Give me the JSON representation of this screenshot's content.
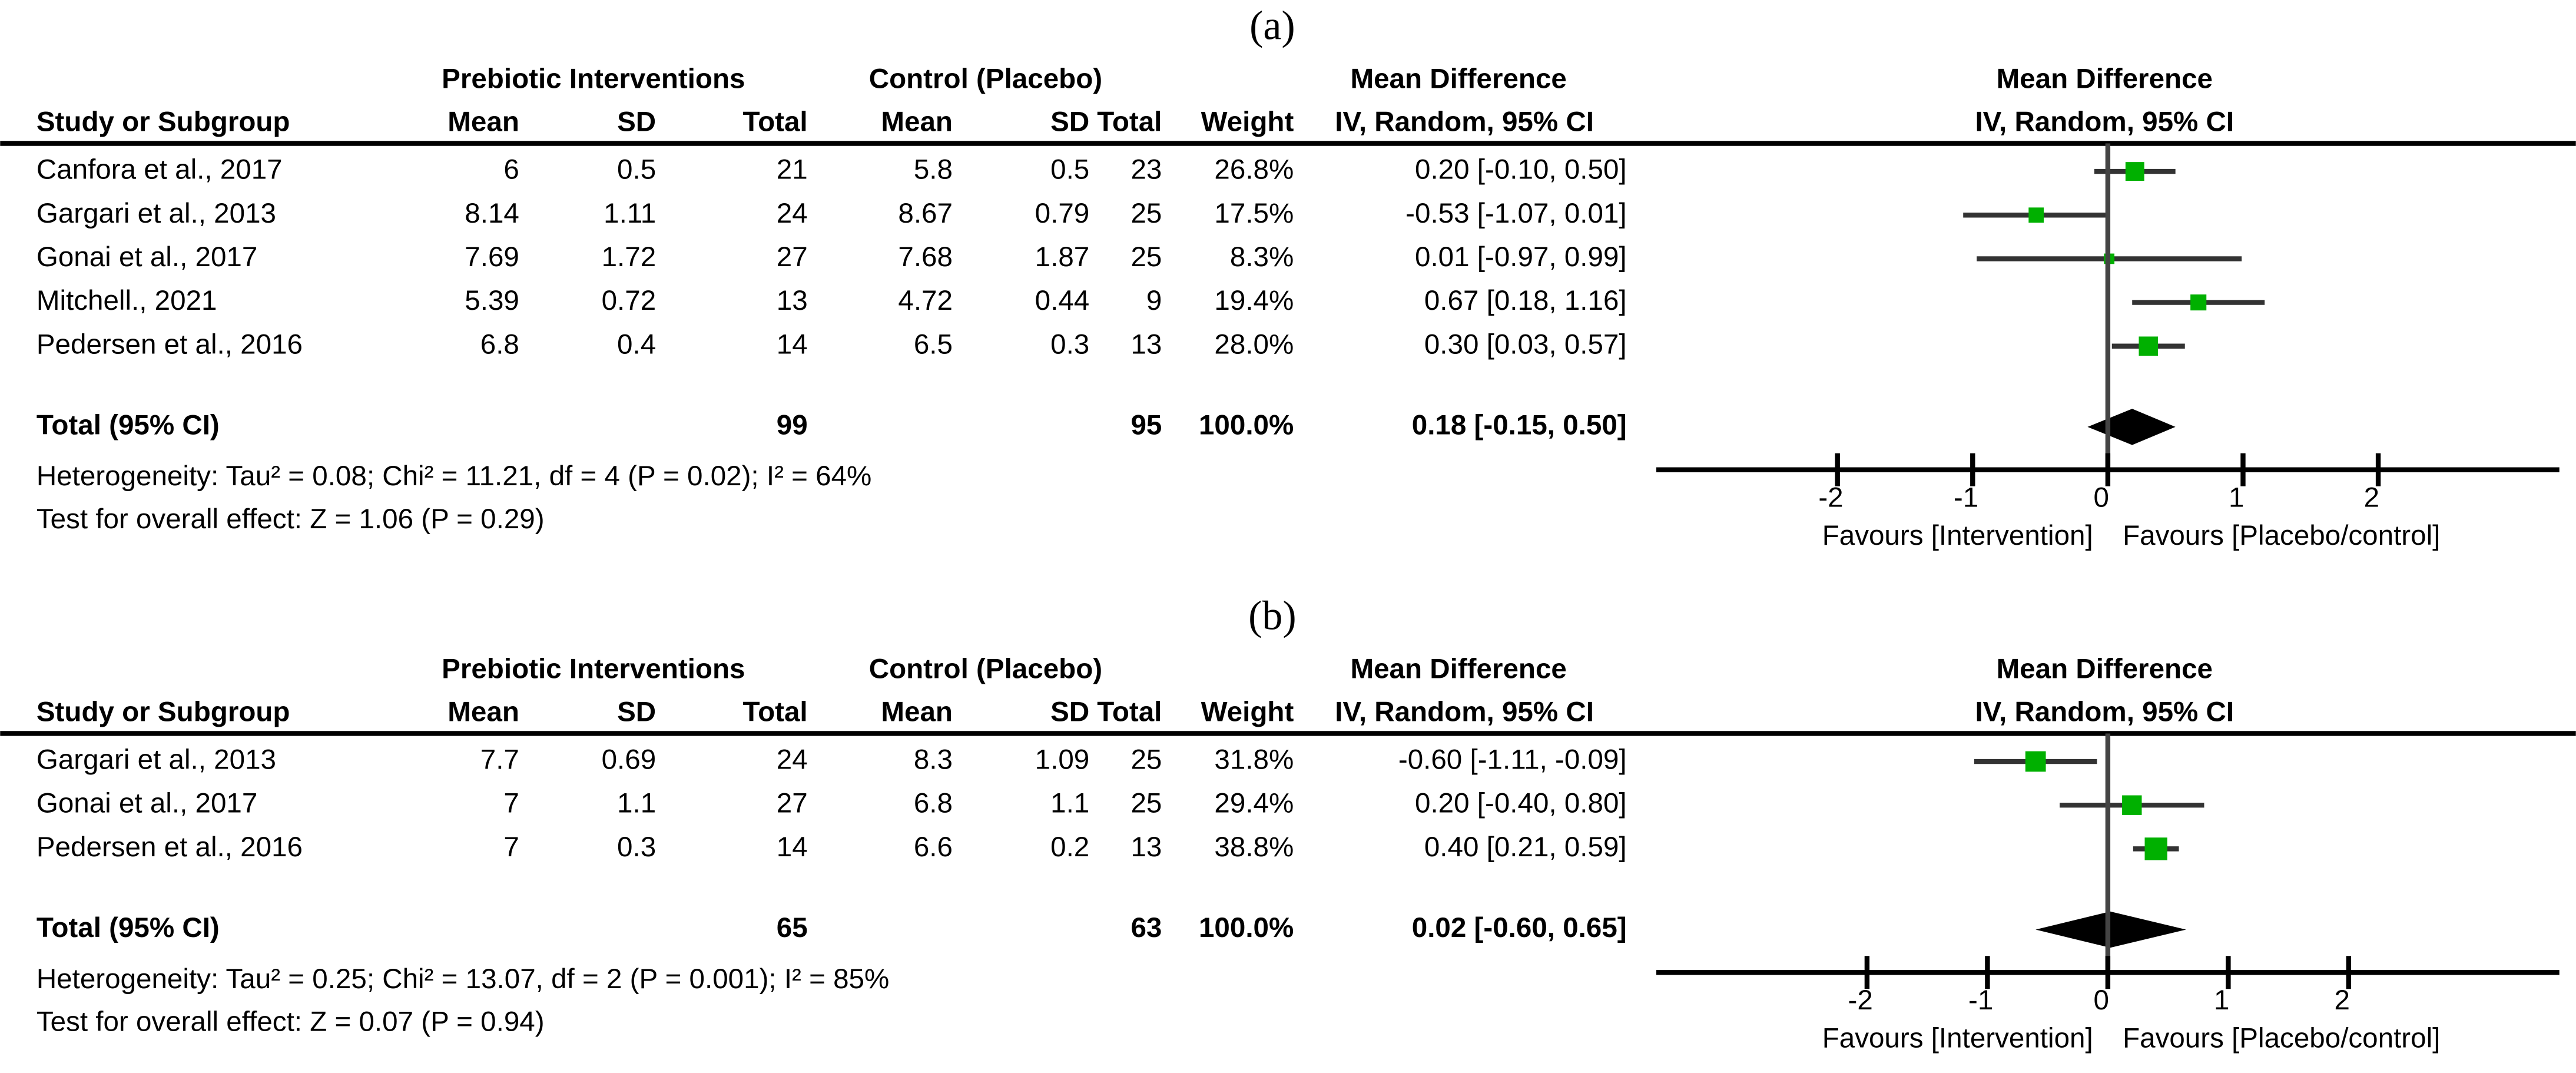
{
  "chart_data": [
    {
      "type": "forest",
      "label": "(a)",
      "group_labels": [
        "Prebiotic Interventions",
        "Control (Placebo)",
        "Mean Difference",
        "Mean Difference"
      ],
      "columns": [
        "Study or Subgroup",
        "Mean",
        "SD",
        "Total",
        "Mean",
        "SD",
        "Total",
        "Weight",
        "IV, Random, 95% CI",
        "IV, Random, 95% CI"
      ],
      "studies": [
        {
          "name": "Canfora et al., 2017",
          "intervention": [
            6,
            0.5,
            21
          ],
          "control": [
            5.8,
            0.5,
            23
          ],
          "weight": 26.8,
          "weight_label": "26.8%",
          "md": 0.2,
          "ci": [
            -0.1,
            0.5
          ],
          "effect_label": "0.20 [-0.10, 0.50]"
        },
        {
          "name": "Gargari et al., 2013",
          "intervention": [
            8.14,
            1.11,
            24
          ],
          "control": [
            8.67,
            0.79,
            25
          ],
          "weight": 17.5,
          "weight_label": "17.5%",
          "md": -0.53,
          "ci": [
            -1.07,
            0.01
          ],
          "effect_label": "-0.53 [-1.07, 0.01]"
        },
        {
          "name": "Gonai et al., 2017",
          "intervention": [
            7.69,
            1.72,
            27
          ],
          "control": [
            7.68,
            1.87,
            25
          ],
          "weight": 8.3,
          "weight_label": "8.3%",
          "md": 0.01,
          "ci": [
            -0.97,
            0.99
          ],
          "effect_label": "0.01 [-0.97, 0.99]"
        },
        {
          "name": "Mitchell., 2021",
          "intervention": [
            5.39,
            0.72,
            13
          ],
          "control": [
            4.72,
            0.44,
            9
          ],
          "weight": 19.4,
          "weight_label": "19.4%",
          "md": 0.67,
          "ci": [
            0.18,
            1.16
          ],
          "effect_label": "0.67 [0.18, 1.16]"
        },
        {
          "name": "Pedersen et al., 2016",
          "intervention": [
            6.8,
            0.4,
            14
          ],
          "control": [
            6.5,
            0.3,
            13
          ],
          "weight": 28.0,
          "weight_label": "28.0%",
          "md": 0.3,
          "ci": [
            0.03,
            0.57
          ],
          "effect_label": "0.30 [0.03, 0.57]"
        }
      ],
      "total": {
        "name": "Total (95% CI)",
        "intervention_total": 99,
        "control_total": 95,
        "weight": 100,
        "weight_label": "100.0%",
        "md": 0.18,
        "ci": [
          -0.15,
          0.5
        ],
        "effect_label": "0.18 [-0.15, 0.50]"
      },
      "heterogeneity": "Heterogeneity: Tau² = 0.08; Chi² = 11.21, df = 4 (P = 0.02); I² = 64%",
      "overall_effect": "Test for overall effect: Z = 1.06 (P = 0.29)",
      "xlim": [
        -3.34,
        3.34
      ],
      "xticks": [
        -2,
        -1,
        0,
        1,
        2
      ],
      "favours": [
        "Favours [Intervention]",
        "Favours [Placebo/control]"
      ],
      "square_color": "#00b000"
    },
    {
      "type": "forest",
      "label": "(b)",
      "group_labels": [
        "Prebiotic Interventions",
        "Control (Placebo)",
        "Mean Difference",
        "Mean Difference"
      ],
      "columns": [
        "Study or Subgroup",
        "Mean",
        "SD",
        "Total",
        "Mean",
        "SD",
        "Total",
        "Weight",
        "IV, Random, 95% CI",
        "IV, Random, 95% CI"
      ],
      "studies": [
        {
          "name": "Gargari et al., 2013",
          "intervention": [
            7.7,
            0.69,
            24
          ],
          "control": [
            8.3,
            1.09,
            25
          ],
          "weight": 31.8,
          "weight_label": "31.8%",
          "md": -0.6,
          "ci": [
            -1.11,
            -0.09
          ],
          "effect_label": "-0.60 [-1.11, -0.09]"
        },
        {
          "name": "Gonai et al., 2017",
          "intervention": [
            7,
            1.1,
            27
          ],
          "control": [
            6.8,
            1.1,
            25
          ],
          "weight": 29.4,
          "weight_label": "29.4%",
          "md": 0.2,
          "ci": [
            -0.4,
            0.8
          ],
          "effect_label": "0.20 [-0.40, 0.80]"
        },
        {
          "name": "Pedersen et al., 2016",
          "intervention": [
            7,
            0.3,
            14
          ],
          "control": [
            6.6,
            0.2,
            13
          ],
          "weight": 38.8,
          "weight_label": "38.8%",
          "md": 0.4,
          "ci": [
            0.21,
            0.59
          ],
          "effect_label": "0.40 [0.21, 0.59]"
        }
      ],
      "total": {
        "name": "Total (95% CI)",
        "intervention_total": 65,
        "control_total": 63,
        "weight": 100,
        "weight_label": "100.0%",
        "md": 0.02,
        "ci": [
          -0.6,
          0.65
        ],
        "effect_label": "0.02 [-0.60, 0.65]"
      },
      "heterogeneity": "Heterogeneity: Tau² = 0.25; Chi² = 13.07, df = 2 (P = 0.001); I² = 85%",
      "overall_effect": "Test for overall effect: Z = 0.07 (P = 0.94)",
      "xlim": [
        -3.75,
        3.75
      ],
      "xticks": [
        -2,
        -1,
        0,
        1,
        2
      ],
      "favours": [
        "Favours [Intervention]",
        "Favours [Placebo/control]"
      ],
      "square_color": "#00b000"
    }
  ]
}
